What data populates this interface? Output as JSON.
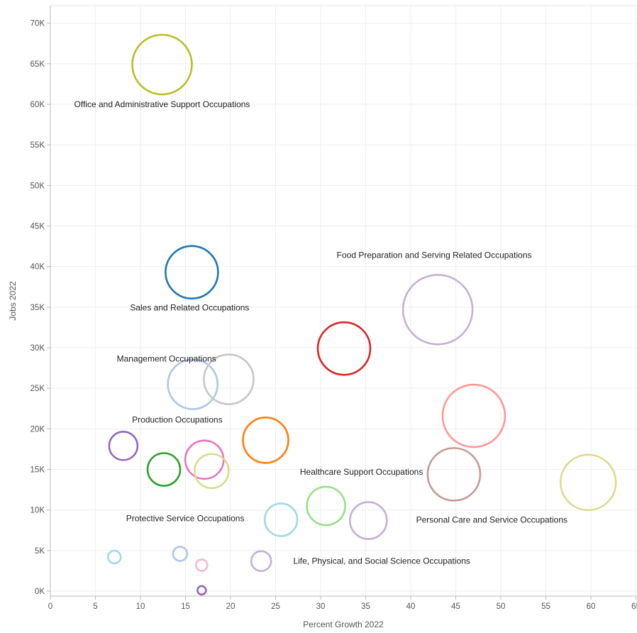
{
  "chart_data": {
    "type": "scatter",
    "xlabel": "Percent Growth 2022",
    "ylabel": "Jobs 2022",
    "xlim": [
      -1.5,
      66
    ],
    "ylim": [
      -1200,
      71000
    ],
    "x_ticks": [
      0,
      5,
      10,
      15,
      20,
      25,
      30,
      35,
      40,
      45,
      50,
      55,
      60,
      65
    ],
    "x_tick_labels": [
      "0",
      "5",
      "10",
      "15",
      "20",
      "25",
      "30",
      "35",
      "40",
      "45",
      "50",
      "55",
      "60",
      "65"
    ],
    "y_ticks": [
      0,
      5000,
      10000,
      15000,
      20000,
      25000,
      30000,
      35000,
      40000,
      45000,
      50000,
      55000,
      60000,
      65000,
      70000
    ],
    "y_tick_labels": [
      "0K",
      "5K",
      "10K",
      "15K",
      "20K",
      "25K",
      "30K",
      "35K",
      "40K",
      "45K",
      "50K",
      "55K",
      "60K",
      "65K",
      "70K"
    ],
    "grid": true,
    "points": [
      {
        "x": 12.4,
        "y": 64900,
        "color": "#bcbd22",
        "label": "Office and Administrative Support Occupations"
      },
      {
        "x": 15.7,
        "y": 39300,
        "color": "#1f77b4",
        "label": "Sales and Related Occupations"
      },
      {
        "x": 43.0,
        "y": 34700,
        "color": "#c5b0d5",
        "label": "Food Preparation and Serving Related Occupations"
      },
      {
        "x": 32.6,
        "y": 29900,
        "color": "#d62728",
        "label": ""
      },
      {
        "x": 15.8,
        "y": 25500,
        "color": "#aec7e8",
        "label": "Management Occupations"
      },
      {
        "x": 19.8,
        "y": 26100,
        "color": "#c7c7c7",
        "label": ""
      },
      {
        "x": 47.0,
        "y": 21600,
        "color": "#ff9896",
        "label": ""
      },
      {
        "x": 23.9,
        "y": 18600,
        "color": "#ff7f0e",
        "label": ""
      },
      {
        "x": 8.1,
        "y": 17900,
        "color": "#9467bd",
        "label": "Production Occupations"
      },
      {
        "x": 17.1,
        "y": 16200,
        "color": "#e377c2",
        "label": ""
      },
      {
        "x": 12.6,
        "y": 15000,
        "color": "#2ca02c",
        "label": ""
      },
      {
        "x": 17.9,
        "y": 14800,
        "color": "#dbdb8d",
        "label": ""
      },
      {
        "x": 44.8,
        "y": 14400,
        "color": "#c49c94",
        "label": ""
      },
      {
        "x": 59.7,
        "y": 13400,
        "color": "#dbdb8d",
        "label": ""
      },
      {
        "x": 30.6,
        "y": 10500,
        "color": "#98df8a",
        "label": "Healthcare Support Occupations"
      },
      {
        "x": 25.6,
        "y": 8800,
        "color": "#9edae5",
        "label": "Protective Service Occupations"
      },
      {
        "x": 35.3,
        "y": 8700,
        "color": "#c5b0d5",
        "label": "Personal Care and Service Occupations"
      },
      {
        "x": 7.1,
        "y": 4200,
        "color": "#9edae5",
        "label": ""
      },
      {
        "x": 14.4,
        "y": 4600,
        "color": "#aec7e8",
        "label": ""
      },
      {
        "x": 16.8,
        "y": 3200,
        "color": "#f7b6d2",
        "label": ""
      },
      {
        "x": 23.4,
        "y": 3700,
        "color": "#c5b0d5",
        "label": "Life, Physical, and Social Science Occupations"
      },
      {
        "x": 16.8,
        "y": 100,
        "color": "#9467bd",
        "label": ""
      }
    ]
  }
}
